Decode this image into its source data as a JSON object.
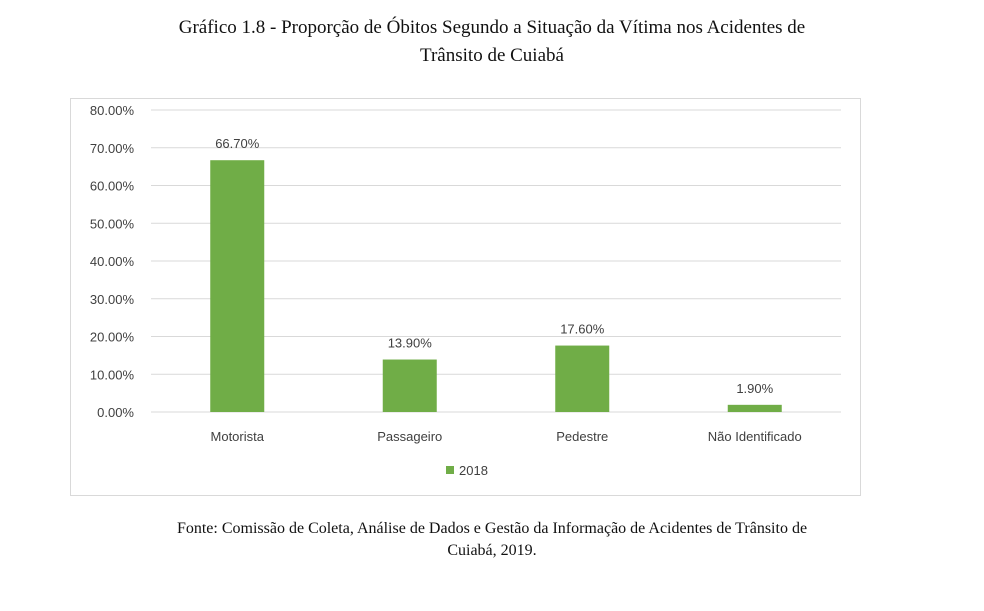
{
  "title_line1": "Gráfico 1.8 - Proporção de Óbitos Segundo a Situação da Vítima nos Acidentes de",
  "title_line2": "Trânsito de Cuiabá",
  "source_line1": "Fonte: Comissão de Coleta, Análise de Dados e Gestão da Informação de Acidentes de Trânsito de",
  "source_line2": "Cuiabá, 2019.",
  "chart_data": {
    "type": "bar",
    "categories": [
      "Motorista",
      "Passageiro",
      "Pedestre",
      "Não Identificado"
    ],
    "series": [
      {
        "name": "2018",
        "values": [
          66.7,
          13.9,
          17.6,
          1.9
        ],
        "color": "#70ad47"
      }
    ],
    "data_labels": [
      "66.70%",
      "13.90%",
      "17.60%",
      "1.90%"
    ],
    "y_ticks": [
      "0.00%",
      "10.00%",
      "20.00%",
      "30.00%",
      "40.00%",
      "50.00%",
      "60.00%",
      "70.00%",
      "80.00%"
    ],
    "ylim": [
      0,
      80
    ],
    "grid": true,
    "legend_position": "bottom",
    "gridline_color": "#d9d9d9",
    "text_color": "#404040"
  }
}
